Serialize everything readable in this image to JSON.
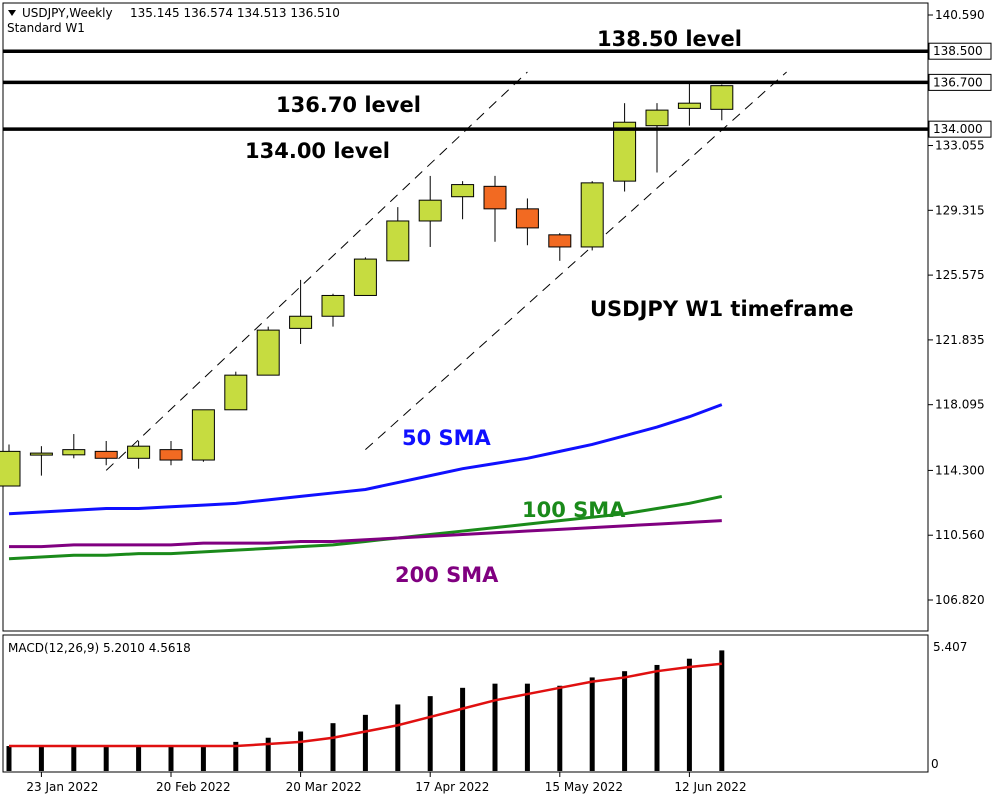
{
  "header": {
    "symbol": "USDJPY,Weekly",
    "ohlc": "135.145 136.574 134.513 136.510",
    "subtitle": "Standard W1"
  },
  "chart_data": {
    "type": "candlestick",
    "title": "USDJPY W1 timeframe",
    "ylim": [
      104.5,
      141.5
    ],
    "y_ticks": [
      "140.590",
      "133.055",
      "129.315",
      "125.575",
      "121.835",
      "118.095",
      "114.300",
      "110.560",
      "106.820"
    ],
    "x_ticks": [
      "23 Jan 2022",
      "20 Feb 2022",
      "20 Mar 2022",
      "17 Apr 2022",
      "15 May 2022",
      "12 Jun 2022"
    ],
    "x_tick_index": [
      1,
      5,
      9,
      13,
      17,
      21
    ],
    "candles": [
      {
        "o": 113.4,
        "h": 115.8,
        "l": 113.4,
        "c": 115.4
      },
      {
        "o": 115.3,
        "h": 115.7,
        "l": 114.0,
        "c": 115.3
      },
      {
        "o": 115.2,
        "h": 116.4,
        "l": 115.0,
        "c": 115.5
      },
      {
        "o": 115.4,
        "h": 116.0,
        "l": 114.6,
        "c": 115.0
      },
      {
        "o": 115.0,
        "h": 116.0,
        "l": 114.4,
        "c": 115.7
      },
      {
        "o": 115.5,
        "h": 116.0,
        "l": 114.6,
        "c": 114.9
      },
      {
        "o": 114.9,
        "h": 117.8,
        "l": 114.8,
        "c": 117.8
      },
      {
        "o": 117.8,
        "h": 120.0,
        "l": 117.8,
        "c": 119.8
      },
      {
        "o": 119.8,
        "h": 122.6,
        "l": 119.8,
        "c": 122.4
      },
      {
        "o": 122.5,
        "h": 125.3,
        "l": 121.6,
        "c": 123.2
      },
      {
        "o": 123.2,
        "h": 124.5,
        "l": 122.6,
        "c": 124.4
      },
      {
        "o": 124.4,
        "h": 126.6,
        "l": 124.4,
        "c": 126.5
      },
      {
        "o": 126.4,
        "h": 129.5,
        "l": 126.4,
        "c": 128.7
      },
      {
        "o": 128.7,
        "h": 131.3,
        "l": 127.2,
        "c": 129.9
      },
      {
        "o": 130.1,
        "h": 131.0,
        "l": 128.8,
        "c": 130.8
      },
      {
        "o": 130.7,
        "h": 131.3,
        "l": 127.5,
        "c": 129.4
      },
      {
        "o": 129.4,
        "h": 130.0,
        "l": 127.3,
        "c": 128.3
      },
      {
        "o": 127.9,
        "h": 128.0,
        "l": 126.4,
        "c": 127.2
      },
      {
        "o": 127.2,
        "h": 131.0,
        "l": 127.0,
        "c": 130.9
      },
      {
        "o": 131.0,
        "h": 135.5,
        "l": 130.4,
        "c": 134.4
      },
      {
        "o": 134.2,
        "h": 135.5,
        "l": 131.5,
        "c": 135.1
      },
      {
        "o": 135.2,
        "h": 136.7,
        "l": 134.2,
        "c": 135.5
      },
      {
        "o": 135.145,
        "h": 136.574,
        "l": 134.513,
        "c": 136.51
      }
    ],
    "levels": [
      {
        "value": 138.5,
        "label": "138.500",
        "annotation": "138.50 level"
      },
      {
        "value": 136.7,
        "label": "136.700",
        "annotation": "136.70 level"
      },
      {
        "value": 134.0,
        "label": "134.000",
        "annotation": "134.00 level"
      }
    ],
    "sma": [
      {
        "name": "50 SMA",
        "color": "#1010ff",
        "values": [
          111.8,
          111.9,
          112.0,
          112.1,
          112.1,
          112.2,
          112.3,
          112.4,
          112.6,
          112.8,
          113.0,
          113.2,
          113.6,
          114.0,
          114.4,
          114.7,
          115.0,
          115.4,
          115.8,
          116.3,
          116.8,
          117.4,
          118.1
        ]
      },
      {
        "name": "100 SMA",
        "color": "#1a8a1a",
        "values": [
          109.2,
          109.3,
          109.4,
          109.4,
          109.5,
          109.5,
          109.6,
          109.7,
          109.8,
          109.9,
          110.0,
          110.2,
          110.4,
          110.6,
          110.8,
          111.0,
          111.2,
          111.4,
          111.6,
          111.8,
          112.1,
          112.4,
          112.8
        ]
      },
      {
        "name": "200 SMA",
        "color": "#800080",
        "values": [
          109.9,
          109.9,
          110.0,
          110.0,
          110.0,
          110.0,
          110.1,
          110.1,
          110.1,
          110.2,
          110.2,
          110.3,
          110.4,
          110.5,
          110.6,
          110.7,
          110.8,
          110.9,
          111.0,
          111.1,
          111.2,
          111.3,
          111.4
        ]
      }
    ],
    "channel": {
      "upper": [
        {
          "i": 3,
          "v": 114.3
        },
        {
          "i": 16,
          "v": 137.3
        }
      ],
      "lower": [
        {
          "i": 11,
          "v": 115.5
        },
        {
          "i": 24,
          "v": 137.3
        }
      ]
    },
    "macd": {
      "label": "MACD(12,26,9) 5.2010 4.5618",
      "ticks": [
        "5.407",
        "0"
      ],
      "ylim": [
        -0.6,
        5.7
      ],
      "histogram": [
        0.6,
        0.6,
        0.6,
        0.6,
        0.6,
        0.6,
        0.6,
        0.8,
        1.0,
        1.3,
        1.7,
        2.1,
        2.6,
        3.0,
        3.4,
        3.6,
        3.6,
        3.5,
        3.9,
        4.2,
        4.5,
        4.8,
        5.2
      ],
      "signal": [
        0.6,
        0.6,
        0.6,
        0.6,
        0.6,
        0.6,
        0.6,
        0.6,
        0.7,
        0.8,
        1.0,
        1.3,
        1.6,
        2.0,
        2.4,
        2.8,
        3.1,
        3.4,
        3.7,
        3.9,
        4.2,
        4.4,
        4.56
      ]
    }
  }
}
